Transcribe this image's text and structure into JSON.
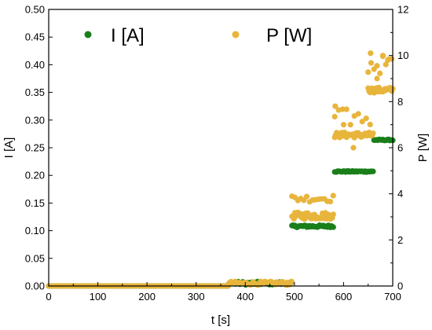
{
  "chart_data": {
    "type": "scatter",
    "xlabel": "t [s]",
    "ylabel_left": "I [A]",
    "ylabel_right": "P [W]",
    "xlim": [
      0,
      700
    ],
    "ylim_left": [
      0,
      0.5
    ],
    "ylim_right": [
      0,
      12
    ],
    "x_ticks": [
      0,
      100,
      200,
      300,
      400,
      500,
      600,
      700
    ],
    "y_left_ticks": [
      0.0,
      0.05,
      0.1,
      0.15,
      0.2,
      0.25,
      0.3,
      0.35,
      0.4,
      0.45,
      0.5
    ],
    "y_left_tick_labels": [
      "0.00",
      "0.05",
      "0.10",
      "0.15",
      "0.20",
      "0.25",
      "0.30",
      "0.35",
      "0.40",
      "0.45",
      "0.50"
    ],
    "y_right_ticks": [
      0,
      2,
      4,
      6,
      8,
      10,
      12
    ],
    "y_right_tick_labels": [
      "0",
      "2",
      "4",
      "6",
      "8",
      "10",
      "12"
    ],
    "grid": false,
    "legend_placement": "top",
    "series": [
      {
        "name": "I [A]",
        "axis": "left",
        "color": "#1a7f1a",
        "segments": [
          {
            "x_start": 0,
            "x_end": 365,
            "y": 0.0,
            "step": 5,
            "jitter": 0.0
          },
          {
            "x_start": 365,
            "x_end": 495,
            "y": 0.005,
            "step": 3,
            "jitter": 0.003
          },
          {
            "x_start": 495,
            "x_end": 580,
            "y": 0.108,
            "step": 2,
            "jitter": 0.002
          },
          {
            "x_start": 582,
            "x_end": 660,
            "y": 0.207,
            "step": 2,
            "jitter": 0.001
          },
          {
            "x_start": 662,
            "x_end": 700,
            "y": 0.264,
            "step": 2,
            "jitter": 0.001
          }
        ]
      },
      {
        "name": "P [W]",
        "axis": "right",
        "color": "#e8b53c",
        "segments": [
          {
            "x_start": 0,
            "x_end": 365,
            "y": 0.0,
            "step": 5,
            "jitter": 0.0
          },
          {
            "x_start": 365,
            "x_end": 495,
            "y": 0.12,
            "step": 3,
            "jitter": 0.08
          },
          {
            "x_start": 495,
            "x_end": 580,
            "y": 3.05,
            "step": 2,
            "jitter": 0.15
          },
          {
            "x_start": 495,
            "x_end": 580,
            "y": 3.8,
            "step": 6,
            "jitter": 0.15
          },
          {
            "x_start": 582,
            "x_end": 660,
            "y": 6.55,
            "step": 2,
            "jitter": 0.12
          },
          {
            "x_start": 582,
            "x_end": 660,
            "y": 7.3,
            "step": 8,
            "jitter": 0.4
          },
          {
            "x_start": 650,
            "x_end": 700,
            "y": 8.5,
            "step": 2,
            "jitter": 0.12
          },
          {
            "x_start": 650,
            "x_end": 700,
            "y": 9.6,
            "step": 6,
            "jitter": 0.4
          }
        ],
        "outliers": [
          {
            "x": 583,
            "y": 7.8
          },
          {
            "x": 600,
            "y": 7.0
          },
          {
            "x": 620,
            "y": 6.0
          },
          {
            "x": 655,
            "y": 10.1
          },
          {
            "x": 680,
            "y": 10.0
          },
          {
            "x": 668,
            "y": 9.0
          },
          {
            "x": 690,
            "y": 9.8
          }
        ]
      }
    ]
  }
}
